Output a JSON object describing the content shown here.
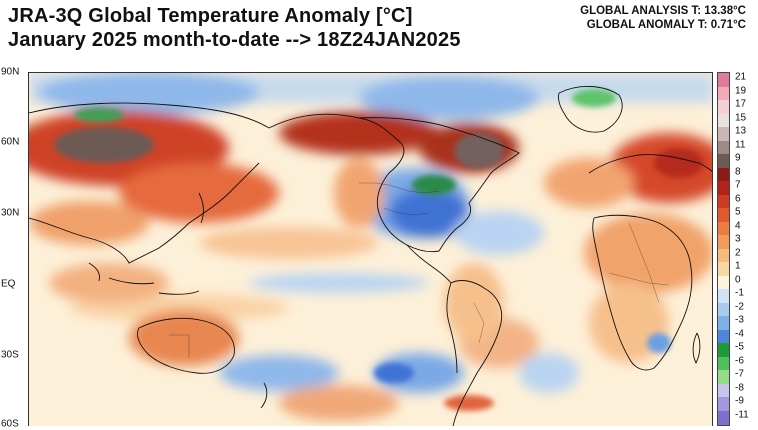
{
  "title": {
    "line1": "JRA-3Q Global Temperature Anomaly [°C]",
    "line2": "January 2025 month-to-date --> 18Z24JAN2025"
  },
  "stats": {
    "global_analysis": "GLOBAL ANALYSIS T: 13.38°C",
    "global_anomaly": "GLOBAL ANOMALY T: 0.71°C"
  },
  "map": {
    "latitude_labels": [
      "90N",
      "60N",
      "30N",
      "EQ",
      "30S",
      "60S"
    ],
    "regions": [
      {
        "name": "siberia-warm",
        "color": "#b8361f"
      },
      {
        "name": "siberia-core",
        "color": "#6e5a55"
      },
      {
        "name": "alaska-warm",
        "color": "#a83020"
      },
      {
        "name": "canada-core",
        "color": "#756060"
      },
      {
        "name": "eastern-us-cold",
        "color": "#3e6fd0"
      },
      {
        "name": "great-lakes-cold",
        "color": "#2a8a4a"
      },
      {
        "name": "greenland-cold",
        "color": "#5fc46a"
      },
      {
        "name": "europe-warm",
        "color": "#d24a2a"
      },
      {
        "name": "tropics-warm",
        "color": "#f5c48c"
      },
      {
        "name": "pacific-cold",
        "color": "#a7c8ef"
      },
      {
        "name": "australia-warm",
        "color": "#e58a52"
      },
      {
        "name": "south-pacific-warm",
        "color": "#f0a878"
      }
    ]
  },
  "colorbar": {
    "labels": [
      "21",
      "19",
      "17",
      "15",
      "13",
      "11",
      "9",
      "8",
      "7",
      "6",
      "5",
      "4",
      "3",
      "2",
      "1",
      "0",
      "-1",
      "-2",
      "-3",
      "-4",
      "-5",
      "-6",
      "-7",
      "-8",
      "-9",
      "-11"
    ],
    "colors": [
      "#e07a9a",
      "#f0aab8",
      "#f6cfd6",
      "#eae0e0",
      "#c8b8b5",
      "#9d8a86",
      "#6e5a55",
      "#8e1a14",
      "#b2241b",
      "#cd3b22",
      "#e2582e",
      "#ec7d42",
      "#f29b5c",
      "#f6b97e",
      "#f9d6a6",
      "#fdf3dd",
      "#cfe3f7",
      "#a9cbef",
      "#7fb0e7",
      "#4f86dc",
      "#1f9a3a",
      "#4fc15a",
      "#95dc8a",
      "#c9c4ee",
      "#a398e0",
      "#7f70cf"
    ]
  }
}
